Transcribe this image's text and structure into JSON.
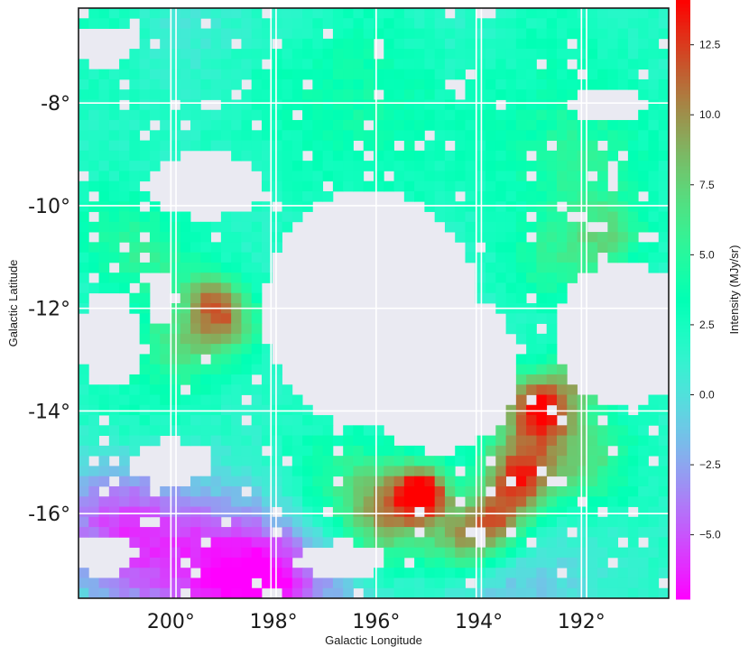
{
  "chart_data": {
    "type": "heatmap",
    "title": "",
    "xlabel": "Galactic Longitude",
    "ylabel": "Galactic Latitude",
    "colorbar_label": "Intensity (MJy/sr)",
    "xlim": [
      201.8,
      190.3
    ],
    "ylim": [
      -17.65,
      -6.15
    ],
    "clim": [
      -7.3,
      14.1
    ],
    "x_ticks": [
      {
        "value": 200,
        "label": "200°"
      },
      {
        "value": 198,
        "label": "198°"
      },
      {
        "value": 196,
        "label": "196°"
      },
      {
        "value": 194,
        "label": "194°"
      },
      {
        "value": 192,
        "label": "192°"
      }
    ],
    "y_ticks": [
      {
        "value": -8,
        "label": "-8°"
      },
      {
        "value": -10,
        "label": "-10°"
      },
      {
        "value": -12,
        "label": "-12°"
      },
      {
        "value": -14,
        "label": "-14°"
      },
      {
        "value": -16,
        "label": "-16°"
      }
    ],
    "colorbar_ticks": [
      {
        "value": 12.5,
        "label": "12.5"
      },
      {
        "value": 10.0,
        "label": "10.0"
      },
      {
        "value": 7.5,
        "label": "7.5"
      },
      {
        "value": 5.0,
        "label": "5.0"
      },
      {
        "value": 2.5,
        "label": "2.5"
      },
      {
        "value": 0.0,
        "label": "0.0"
      },
      {
        "value": -2.5,
        "label": "−2.5"
      },
      {
        "value": -5.0,
        "label": "−5.0"
      }
    ],
    "colormap": "rainbow",
    "missing_color": "#eaeaf2",
    "grid": true,
    "grid_color": "#ffffff",
    "grid_lines_x": [
      200.0,
      199.9,
      198.05,
      197.95,
      196.0,
      194.05,
      193.95,
      192.0,
      191.9
    ],
    "grid_lines_y": [
      -8,
      -10,
      -12,
      -14,
      -16
    ],
    "grid_spec": {
      "nx": 58,
      "ny": 58,
      "lon_start": 201.8,
      "lon_step": -0.19828,
      "lat_start": -6.15,
      "lat_step": -0.19828
    },
    "blobs": [
      {
        "lon": 196.9,
        "lat": -6.8,
        "sigma": 1.5,
        "amp": 1.5
      },
      {
        "lon": 193.0,
        "lat": -6.8,
        "sigma": 1.3,
        "amp": 1.3
      },
      {
        "lon": 200.9,
        "lat": -6.7,
        "sigma": 1.0,
        "amp": 1.2
      },
      {
        "lon": 196.0,
        "lat": -8.4,
        "sigma": 1.4,
        "amp": 1.4
      },
      {
        "lon": 201.0,
        "lat": -10.6,
        "sigma": 0.7,
        "amp": 2.5
      },
      {
        "lon": 200.1,
        "lat": -11.2,
        "sigma": 0.6,
        "amp": 2.5
      },
      {
        "lon": 199.2,
        "lat": -11.8,
        "sigma": 0.35,
        "amp": 5.5
      },
      {
        "lon": 198.9,
        "lat": -12.3,
        "sigma": 0.45,
        "amp": 6.5
      },
      {
        "lon": 199.8,
        "lat": -12.7,
        "sigma": 0.55,
        "amp": 4.5
      },
      {
        "lon": 200.6,
        "lat": -14.2,
        "sigma": 1.0,
        "amp": 1.5
      },
      {
        "lon": 192.0,
        "lat": -9.2,
        "sigma": 1.0,
        "amp": 3.0
      },
      {
        "lon": 191.5,
        "lat": -10.6,
        "sigma": 0.5,
        "amp": 4.0
      },
      {
        "lon": 192.6,
        "lat": -11.1,
        "sigma": 0.6,
        "amp": 3.0
      },
      {
        "lon": 191.9,
        "lat": -13.2,
        "sigma": 0.35,
        "amp": 9.0
      },
      {
        "lon": 192.8,
        "lat": -13.9,
        "sigma": 0.45,
        "amp": 10.0
      },
      {
        "lon": 193.2,
        "lat": -14.6,
        "sigma": 0.7,
        "amp": 3.5
      },
      {
        "lon": 192.0,
        "lat": -14.9,
        "sigma": 0.7,
        "amp": 5.0
      },
      {
        "lon": 193.2,
        "lat": -15.3,
        "sigma": 0.45,
        "amp": 8.0
      },
      {
        "lon": 193.6,
        "lat": -16.1,
        "sigma": 0.45,
        "amp": 8.0
      },
      {
        "lon": 194.3,
        "lat": -16.5,
        "sigma": 0.5,
        "amp": 7.5
      },
      {
        "lon": 195.1,
        "lat": -15.6,
        "sigma": 0.35,
        "amp": 12.0
      },
      {
        "lon": 195.8,
        "lat": -15.8,
        "sigma": 0.6,
        "amp": 5.5
      },
      {
        "lon": 195.7,
        "lat": -16.4,
        "sigma": 0.6,
        "amp": 3.0
      },
      {
        "lon": 196.8,
        "lat": -15.5,
        "sigma": 0.8,
        "amp": 3.0
      },
      {
        "lon": 200.4,
        "lat": -16.7,
        "sigma": 1.2,
        "amp": -6.0
      },
      {
        "lon": 201.3,
        "lat": -15.9,
        "sigma": 0.8,
        "amp": -3.0
      },
      {
        "lon": 198.5,
        "lat": -17.2,
        "sigma": 1.0,
        "amp": -5.0
      },
      {
        "lon": 197.8,
        "lat": -17.5,
        "sigma": 1.0,
        "amp": -4.5
      },
      {
        "lon": 193.3,
        "lat": -17.5,
        "sigma": 1.2,
        "amp": -3.0
      },
      {
        "lon": 199.8,
        "lat": -6.6,
        "sigma": 0.8,
        "amp": -2.0
      },
      {
        "lon": 197.5,
        "lat": -6.4,
        "sigma": 0.8,
        "amp": -1.2
      },
      {
        "lon": 194.4,
        "lat": -6.5,
        "sigma": 1.0,
        "amp": -1.4
      }
    ],
    "base_value": 1.8,
    "empty_regions": [
      {
        "lon": 196.1,
        "lat": -12.0,
        "rx": 2.1,
        "ry": 2.3
      },
      {
        "lon": 194.8,
        "lat": -13.2,
        "rx": 1.6,
        "ry": 1.6
      },
      {
        "lon": 199.3,
        "lat": -9.6,
        "rx": 1.1,
        "ry": 0.65
      },
      {
        "lon": 201.2,
        "lat": -12.6,
        "rx": 0.55,
        "ry": 1.0
      },
      {
        "lon": 200.2,
        "lat": -11.8,
        "rx": 0.3,
        "ry": 0.45
      },
      {
        "lon": 191.2,
        "lat": -12.5,
        "rx": 1.3,
        "ry": 1.4
      },
      {
        "lon": 200.0,
        "lat": -15.0,
        "rx": 0.8,
        "ry": 0.45
      },
      {
        "lon": 201.3,
        "lat": -16.8,
        "rx": 0.6,
        "ry": 0.4
      },
      {
        "lon": 196.7,
        "lat": -16.9,
        "rx": 0.9,
        "ry": 0.35
      },
      {
        "lon": 191.5,
        "lat": -8.0,
        "rx": 0.8,
        "ry": 0.3
      },
      {
        "lon": 201.3,
        "lat": -6.9,
        "rx": 0.6,
        "ry": 0.45
      }
    ]
  }
}
